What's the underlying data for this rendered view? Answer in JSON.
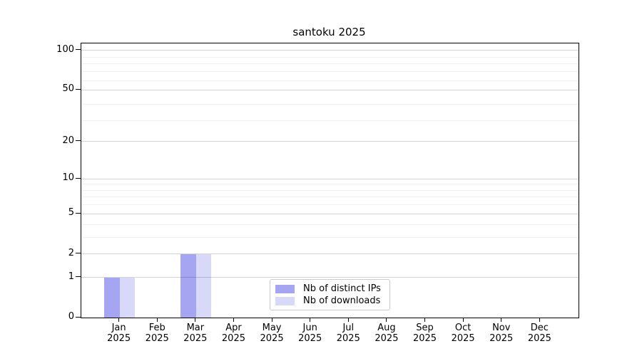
{
  "title": "santoku 2025",
  "chart_data": {
    "type": "bar",
    "title": "santoku 2025",
    "y_scale": "log(value+1)",
    "ylim": [
      0,
      113
    ],
    "yticks": [
      0,
      1,
      2,
      5,
      10,
      20,
      50,
      100
    ],
    "y_minor_gridlines": [
      3,
      4,
      6,
      7,
      8,
      9,
      29,
      39,
      59,
      69,
      79,
      89
    ],
    "grid": true,
    "categories": [
      {
        "month": "Jan",
        "year": "2025"
      },
      {
        "month": "Feb",
        "year": "2025"
      },
      {
        "month": "Mar",
        "year": "2025"
      },
      {
        "month": "Apr",
        "year": "2025"
      },
      {
        "month": "May",
        "year": "2025"
      },
      {
        "month": "Jun",
        "year": "2025"
      },
      {
        "month": "Jul",
        "year": "2025"
      },
      {
        "month": "Aug",
        "year": "2025"
      },
      {
        "month": "Sep",
        "year": "2025"
      },
      {
        "month": "Oct",
        "year": "2025"
      },
      {
        "month": "Nov",
        "year": "2025"
      },
      {
        "month": "Dec",
        "year": "2025"
      }
    ],
    "series": [
      {
        "name": "Nb of distinct IPs",
        "color": "#a5a5f2",
        "values": [
          1,
          0,
          2,
          0,
          0,
          0,
          0,
          0,
          0,
          0,
          0,
          0
        ]
      },
      {
        "name": "Nb of downloads",
        "color": "#d8d8f8",
        "values": [
          1,
          0,
          2,
          0,
          0,
          0,
          0,
          0,
          0,
          0,
          0,
          0
        ]
      }
    ],
    "legend_position": "lower center"
  }
}
